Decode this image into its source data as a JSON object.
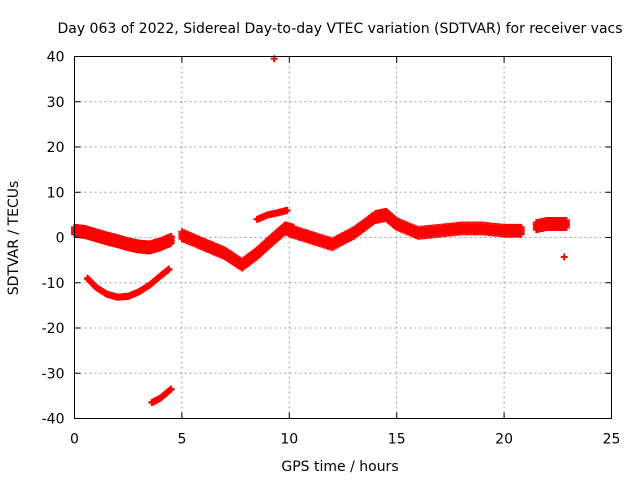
{
  "chart_data": {
    "type": "scatter",
    "title": "Day 063 of 2022, Sidereal Day-to-day VTEC variation (SDTVAR) for receiver vacs",
    "xlabel": "GPS time / hours",
    "ylabel": "SDTVAR / TECUs",
    "xlim": [
      0,
      25
    ],
    "ylim": [
      -40,
      40
    ],
    "xticks": [
      0,
      5,
      10,
      15,
      20,
      25
    ],
    "yticks": [
      -40,
      -30,
      -20,
      -10,
      0,
      10,
      20,
      30,
      40
    ],
    "grid": true,
    "marker": "plus",
    "series": [
      {
        "name": "SDTVAR",
        "color": "#ff0000",
        "tracks": [
          {
            "x": [
              0.0,
              0.5,
              1.0,
              1.5,
              2.0,
              2.5,
              3.0,
              3.5,
              4.0,
              4.5
            ],
            "y": [
              1.5,
              1.2,
              0.5,
              -0.2,
              -0.8,
              -1.5,
              -2.0,
              -2.2,
              -1.5,
              -0.5
            ],
            "spread": 1.5
          },
          {
            "x": [
              0.6,
              1.0,
              1.5,
              2.0,
              2.5,
              3.0,
              3.5,
              4.0,
              4.4
            ],
            "y": [
              -9.0,
              -11.0,
              -12.5,
              -13.2,
              -13.0,
              -12.0,
              -10.5,
              -8.5,
              -7.0
            ],
            "spread": 0.3
          },
          {
            "x": [
              3.6,
              4.0,
              4.5
            ],
            "y": [
              -36.5,
              -35.5,
              -33.5
            ],
            "spread": 0.3
          },
          {
            "x": [
              5.0,
              6.0,
              7.0,
              7.8,
              8.5,
              9.2,
              9.8,
              10.2
            ],
            "y": [
              0.5,
              -1.5,
              -3.5,
              -6.0,
              -3.5,
              -0.5,
              2.0,
              1.5
            ],
            "spread": 1.5
          },
          {
            "x": [
              8.5,
              9.0,
              9.5,
              9.9
            ],
            "y": [
              4.0,
              5.0,
              5.5,
              6.0
            ],
            "spread": 0.3
          },
          {
            "x": [
              10.0,
              11.0,
              12.0,
              13.0,
              14.0,
              14.5,
              15.0,
              16.0,
              17.0,
              18.0,
              19.0,
              20.0,
              20.8
            ],
            "y": [
              1.5,
              0.0,
              -1.5,
              1.0,
              4.5,
              5.0,
              3.0,
              1.0,
              1.5,
              2.0,
              2.0,
              1.5,
              1.5
            ],
            "spread": 1.5
          },
          {
            "x": [
              21.5,
              22.0,
              22.5,
              22.9
            ],
            "y": [
              2.5,
              3.0,
              3.0,
              3.0
            ],
            "spread": 1.5
          },
          {
            "x": [
              22.8
            ],
            "y": [
              -4.3
            ],
            "spread": 0.2
          },
          {
            "x": [
              9.3
            ],
            "y": [
              39.5
            ],
            "spread": 0.2
          }
        ]
      }
    ]
  }
}
